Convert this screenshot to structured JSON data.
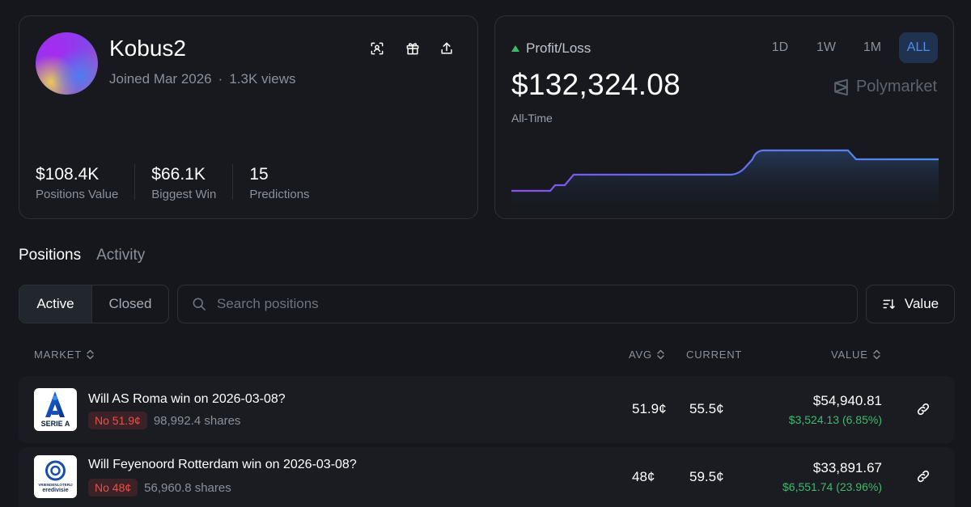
{
  "profile": {
    "username": "Kobus2",
    "joined": "Joined Mar 2026",
    "separator": "·",
    "views": "1.3K views",
    "actions": [
      "scan-icon",
      "gift-icon",
      "share-icon"
    ],
    "stats": [
      {
        "value": "$108.4K",
        "label": "Positions Value"
      },
      {
        "value": "$66.1K",
        "label": "Biggest Win"
      },
      {
        "value": "15",
        "label": "Predictions"
      }
    ]
  },
  "pnl": {
    "label": "Profit/Loss",
    "value": "$132,324.08",
    "period": "All-Time",
    "brand": "Polymarket",
    "ranges": [
      "1D",
      "1W",
      "1M",
      "ALL"
    ],
    "active_range": "ALL",
    "accent": "#4d8ff0",
    "positive": "#3dbb6b"
  },
  "tabs": {
    "positions": "Positions",
    "activity": "Activity"
  },
  "filters": {
    "active": "Active",
    "closed": "Closed",
    "search_placeholder": "Search positions",
    "sort_label": "Value"
  },
  "table": {
    "headers": {
      "market": "MARKET",
      "avg": "AVG",
      "current": "CURRENT",
      "value": "VALUE"
    },
    "rows": [
      {
        "title": "Will AS Roma win on 2026-03-08?",
        "badge": "No 51.9¢",
        "shares": "98,992.4 shares",
        "avg": "51.9¢",
        "current": "55.5¢",
        "value": "$54,940.81",
        "change": "$3,524.13 (6.85%)",
        "logo_text": "SERIE A"
      },
      {
        "title": "Will Feyenoord Rotterdam win on 2026-03-08?",
        "badge": "No 48¢",
        "shares": "56,960.8 shares",
        "avg": "48¢",
        "current": "59.5¢",
        "value": "$33,891.67",
        "change": "$6,551.74 (23.96%)",
        "logo_text_1": "VRIENDENLOTERIJ",
        "logo_text_2": "eredivisie"
      }
    ]
  }
}
